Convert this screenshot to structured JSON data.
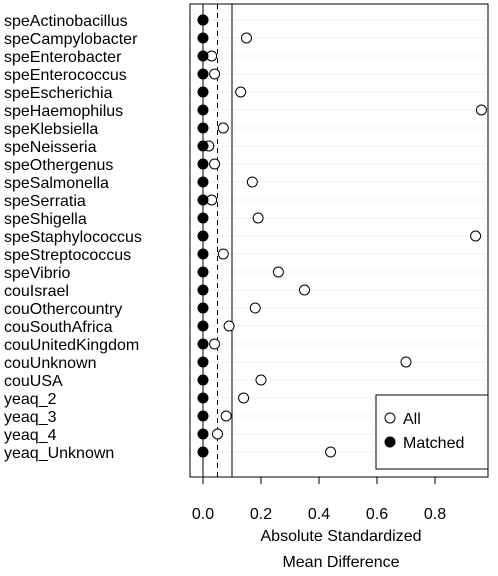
{
  "chart_data": {
    "type": "scatter",
    "title": "",
    "xlabel": [
      "Absolute Standardized",
      "Mean Difference"
    ],
    "ylabel": "",
    "xlim": [
      -0.05,
      0.98
    ],
    "x_ticks": [
      0.0,
      0.2,
      0.4,
      0.6,
      0.8
    ],
    "x_tick_labels": [
      "0.0",
      "0.2",
      "0.4",
      "0.6",
      "0.8"
    ],
    "reference_lines": [
      {
        "x": 0,
        "style": "solid"
      },
      {
        "x": 0.05,
        "style": "dashed"
      },
      {
        "x": 0.1,
        "style": "solid"
      }
    ],
    "grid": "horizontal dotted",
    "legend_position": "bottom-right",
    "categories": [
      "speActinobacillus",
      "speCampylobacter",
      "speEnterobacter",
      "speEnterococcus",
      "speEscherichia",
      "speHaemophilus",
      "speKlebsiella",
      "speNeisseria",
      "speOthergenus",
      "speSalmonella",
      "speSerratia",
      "speShigella",
      "speStaphylococcus",
      "speStreptococcus",
      "speVibrio",
      "couIsrael",
      "couOthercountry",
      "couSouthAfrica",
      "couUnitedKingdom",
      "couUnknown",
      "couUSA",
      "yeaq_2",
      "yeaq_3",
      "yeaq_4",
      "yeaq_Unknown"
    ],
    "series": [
      {
        "name": "All",
        "marker": "open-circle",
        "values": [
          0.0,
          0.15,
          0.03,
          0.04,
          0.13,
          0.96,
          0.07,
          0.02,
          0.04,
          0.17,
          0.03,
          0.19,
          0.94,
          0.07,
          0.26,
          0.35,
          0.18,
          0.09,
          0.04,
          0.7,
          0.2,
          0.14,
          0.08,
          0.05,
          0.44
        ]
      },
      {
        "name": "Matched",
        "marker": "filled-circle",
        "values": [
          0.0,
          0.0,
          0.0,
          0.0,
          0.0,
          0.0,
          0.0,
          0.0,
          0.0,
          0.0,
          0.0,
          0.0,
          0.0,
          0.0,
          0.0,
          0.0,
          0.0,
          0.0,
          0.0,
          0.0,
          0.0,
          0.0,
          0.0,
          0.0,
          0.0
        ]
      }
    ]
  }
}
